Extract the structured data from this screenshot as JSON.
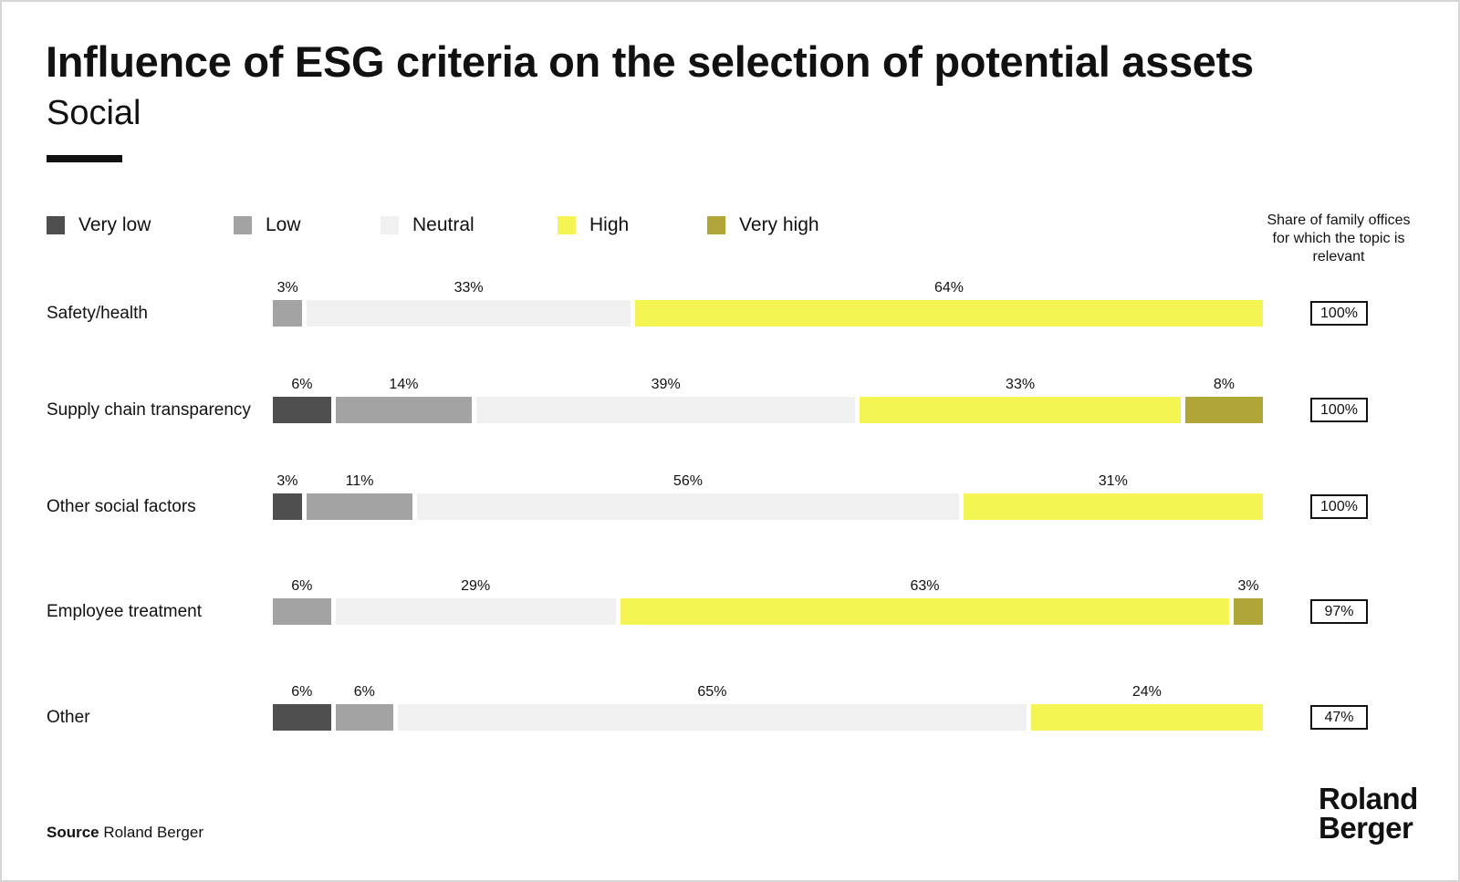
{
  "title": "Influence of ESG criteria on the selection of potential assets",
  "subtitle": "Social",
  "legend": [
    {
      "label": "Very low",
      "color": "#4f4f4f"
    },
    {
      "label": "Low",
      "color": "#a3a3a3"
    },
    {
      "label": "Neutral",
      "color": "#f0f0f0"
    },
    {
      "label": "High",
      "color": "#f4f452"
    },
    {
      "label": "Very high",
      "color": "#b0a637"
    }
  ],
  "share_header": "Share of family offices for which the topic is relevant",
  "chart_data": {
    "type": "bar",
    "orientation": "horizontal",
    "stacked": true,
    "categories": [
      "Safety/health",
      "Supply chain transparency",
      "Other social factors",
      "Employee treatment",
      "Other"
    ],
    "series": [
      {
        "name": "Very low",
        "values": [
          null,
          6,
          3,
          null,
          6
        ]
      },
      {
        "name": "Low",
        "values": [
          3,
          14,
          11,
          6,
          6
        ]
      },
      {
        "name": "Neutral",
        "values": [
          33,
          39,
          56,
          29,
          65
        ]
      },
      {
        "name": "High",
        "values": [
          64,
          33,
          31,
          63,
          24
        ]
      },
      {
        "name": "Very high",
        "values": [
          null,
          8,
          null,
          3,
          null
        ]
      }
    ],
    "value_unit": "%",
    "share_relevant": [
      "100%",
      "100%",
      "100%",
      "97%",
      "47%"
    ],
    "legend_position": "top",
    "grid": false
  },
  "source_label": "Source",
  "source_value": "Roland Berger",
  "logo_line1": "Roland",
  "logo_line2": "Berger"
}
